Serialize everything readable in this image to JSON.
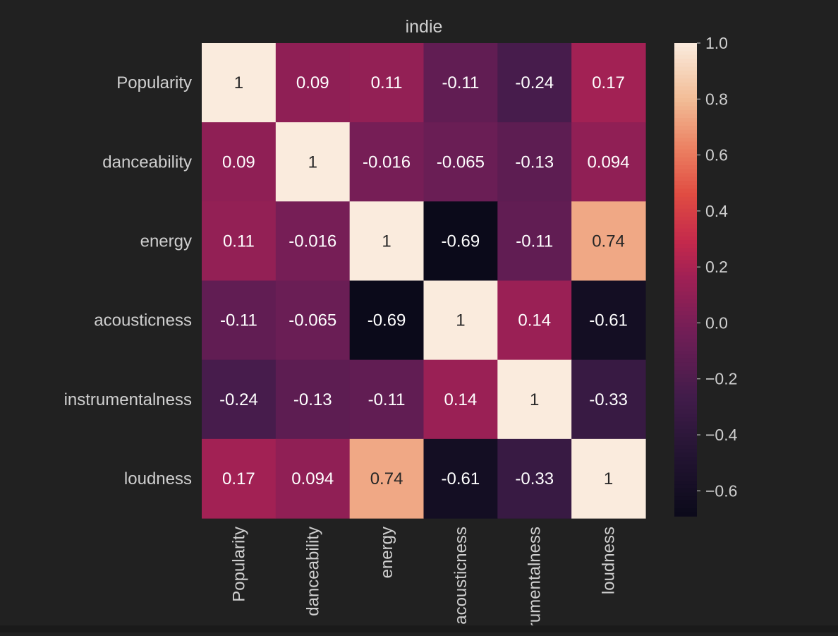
{
  "chart_data": {
    "type": "heatmap",
    "title": "indie",
    "row_labels": [
      "Popularity",
      "danceability",
      "energy",
      "acousticness",
      "instrumentalness",
      "loudness"
    ],
    "col_labels": [
      "Popularity",
      "danceability",
      "energy",
      "acousticness",
      "instrumentalness",
      "loudness"
    ],
    "values": [
      [
        1,
        0.09,
        0.11,
        -0.11,
        -0.24,
        0.17
      ],
      [
        0.09,
        1,
        -0.016,
        -0.065,
        -0.13,
        0.094
      ],
      [
        0.11,
        -0.016,
        1,
        -0.69,
        -0.11,
        0.74
      ],
      [
        -0.11,
        -0.065,
        -0.69,
        1,
        0.14,
        -0.61
      ],
      [
        -0.24,
        -0.13,
        -0.11,
        0.14,
        1,
        -0.33
      ],
      [
        0.17,
        0.094,
        0.74,
        -0.61,
        -0.33,
        1
      ]
    ],
    "annotations": [
      [
        "1",
        "0.09",
        "0.11",
        "-0.11",
        "-0.24",
        "0.17"
      ],
      [
        "0.09",
        "1",
        "-0.016",
        "-0.065",
        "-0.13",
        "0.094"
      ],
      [
        "0.11",
        "-0.016",
        "1",
        "-0.69",
        "-0.11",
        "0.74"
      ],
      [
        "-0.11",
        "-0.065",
        "-0.69",
        "1",
        "0.14",
        "-0.61"
      ],
      [
        "-0.24",
        "-0.13",
        "-0.11",
        "0.14",
        "1",
        "-0.33"
      ],
      [
        "0.17",
        "0.094",
        "0.74",
        "-0.61",
        "-0.33",
        "1"
      ]
    ],
    "colorbar": {
      "vmin": -0.69,
      "vmax": 1.0,
      "ticks": [
        1.0,
        0.8,
        0.6,
        0.4,
        0.2,
        0.0,
        -0.2,
        -0.4,
        -0.6
      ],
      "tick_labels": [
        "1.0",
        "0.8",
        "0.6",
        "0.4",
        "0.2",
        "0.0",
        "−0.2",
        "−0.4",
        "−0.6"
      ]
    },
    "colormap": "rocket",
    "background_color": "#212121",
    "text_color": "#cfcfcf"
  }
}
